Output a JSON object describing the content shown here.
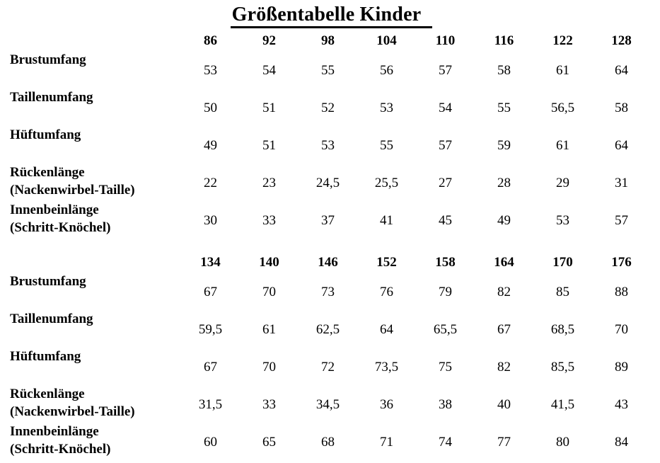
{
  "title": "Größentabelle Kinder",
  "table": {
    "blocks": [
      {
        "sizes": [
          "86",
          "92",
          "98",
          "104",
          "110",
          "116",
          "122",
          "128"
        ],
        "rows": [
          {
            "label": "Brustumfang",
            "label2": "",
            "values": [
              "53",
              "54",
              "55",
              "56",
              "57",
              "58",
              "61",
              "64"
            ]
          },
          {
            "label": "Taillenumfang",
            "label2": "",
            "values": [
              "50",
              "51",
              "52",
              "53",
              "54",
              "55",
              "56,5",
              "58"
            ]
          },
          {
            "label": "Hüftumfang",
            "label2": "",
            "values": [
              "49",
              "51",
              "53",
              "55",
              "57",
              "59",
              "61",
              "64"
            ]
          },
          {
            "label": "Rückenlänge",
            "label2": "(Nackenwirbel-Taille)",
            "values": [
              "22",
              "23",
              "24,5",
              "25,5",
              "27",
              "28",
              "29",
              "31"
            ]
          },
          {
            "label": "Innenbeinlänge",
            "label2": "(Schritt-Knöchel)",
            "values": [
              "30",
              "33",
              "37",
              "41",
              "45",
              "49",
              "53",
              "57"
            ]
          }
        ]
      },
      {
        "sizes": [
          "134",
          "140",
          "146",
          "152",
          "158",
          "164",
          "170",
          "176"
        ],
        "rows": [
          {
            "label": "Brustumfang",
            "label2": "",
            "values": [
              "67",
              "70",
              "73",
              "76",
              "79",
              "82",
              "85",
              "88"
            ]
          },
          {
            "label": "Taillenumfang",
            "label2": "",
            "values": [
              "59,5",
              "61",
              "62,5",
              "64",
              "65,5",
              "67",
              "68,5",
              "70"
            ]
          },
          {
            "label": "Hüftumfang",
            "label2": "",
            "values": [
              "67",
              "70",
              "72",
              "73,5",
              "75",
              "82",
              "85,5",
              "89"
            ]
          },
          {
            "label": "Rückenlänge",
            "label2": "(Nackenwirbel-Taille)",
            "values": [
              "31,5",
              "33",
              "34,5",
              "36",
              "38",
              "40",
              "41,5",
              "43"
            ]
          },
          {
            "label": "Innenbeinlänge",
            "label2": "(Schritt-Knöchel)",
            "values": [
              "60",
              "65",
              "68",
              "71",
              "74",
              "77",
              "80",
              "84"
            ]
          }
        ]
      }
    ]
  }
}
